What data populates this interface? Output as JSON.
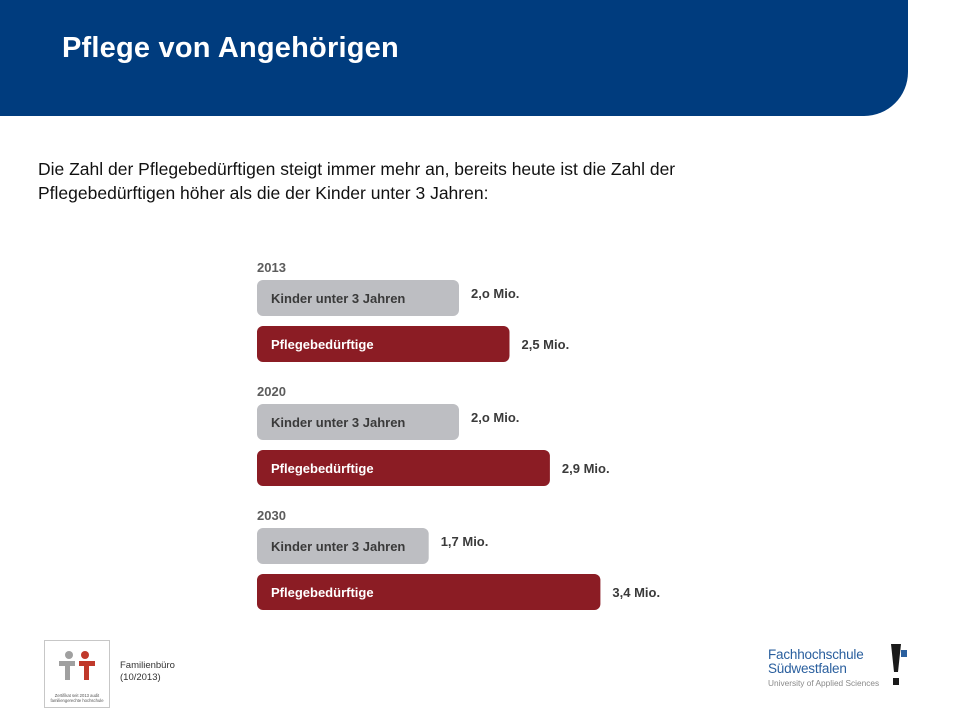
{
  "slide": {
    "title": "Pflege von Angehörigen",
    "intro_line1": "Die Zahl der Pflegebedürftigen steigt immer mehr an, bereits heute ist die Zahl der",
    "intro_line2": "Pflegebedürftigen höher als die der Kinder unter 3 Jahren:"
  },
  "footer": {
    "department": "Familienbüro",
    "date": "(10/2013)",
    "certificate_text": "Zertifikat seit 2013 audit familiengerechte hochschule",
    "university_name": "Fachhochschule Südwestfalen",
    "university_tagline": "University of Applied Sciences"
  },
  "colors": {
    "header": "#003c7e",
    "bar_children": "#bdbec2",
    "bar_care": "#8b1c24",
    "logo_blue": "#2a5f9e"
  },
  "chart_data": {
    "type": "bar",
    "orientation": "horizontal",
    "unit": "Mio.",
    "groups": [
      {
        "year": "2013",
        "bars": [
          {
            "label": "Kinder unter 3 Jahren",
            "value": 2.0,
            "value_label": "2,o Mio.",
            "color": "#bdbec2"
          },
          {
            "label": "Pflegebedürftige",
            "value": 2.5,
            "value_label": "2,5 Mio.",
            "color": "#8b1c24"
          }
        ]
      },
      {
        "year": "2020",
        "bars": [
          {
            "label": "Kinder unter 3 Jahren",
            "value": 2.0,
            "value_label": "2,o Mio.",
            "color": "#bdbec2"
          },
          {
            "label": "Pflegebedürftige",
            "value": 2.9,
            "value_label": "2,9 Mio.",
            "color": "#8b1c24"
          }
        ]
      },
      {
        "year": "2030",
        "bars": [
          {
            "label": "Kinder unter 3 Jahren",
            "value": 1.7,
            "value_label": "1,7 Mio.",
            "color": "#bdbec2"
          },
          {
            "label": "Pflegebedürftige",
            "value": 3.4,
            "value_label": "3,4 Mio.",
            "color": "#8b1c24"
          }
        ]
      }
    ]
  }
}
